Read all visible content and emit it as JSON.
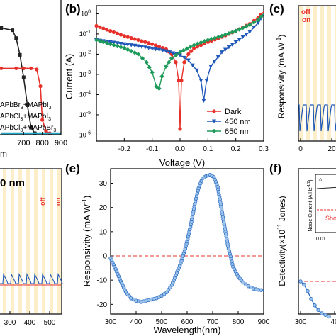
{
  "colors": {
    "red": "#e8302a",
    "blue": "#1f57b8",
    "green": "#1e9a5a",
    "black": "#222222",
    "gray": "#666666",
    "cyan": "#22a7c9",
    "zero_dash": "#e8302a",
    "light_band": "#fbeec9",
    "e_curve": "#2b6cc4",
    "e_marker_fill": "#9cc3ea"
  },
  "chart_data": [
    {
      "id": "a",
      "type": "line",
      "panel_label": "",
      "xlabel_partial": "m",
      "x_ticks": [
        "700",
        "800",
        "900"
      ],
      "legend": [
        "APbBr3+MAPbI3",
        "APbCl3+MAPbI3",
        "APbCl3+MAPbBr3"
      ],
      "series": [
        {
          "color": "black",
          "x": [
            580,
            640,
            660,
            680,
            700,
            720,
            740,
            760
          ],
          "y": [
            0.94,
            0.92,
            0.85,
            0.7,
            0.5,
            0.25,
            0.05,
            0.0
          ]
        },
        {
          "color": "red",
          "x": [
            580,
            660,
            700,
            740,
            770,
            790,
            800,
            820,
            840
          ],
          "y": [
            0.58,
            0.58,
            0.58,
            0.58,
            0.57,
            0.42,
            0.12,
            0.02,
            0.0
          ]
        },
        {
          "color": "cyan",
          "x": [
            580,
            900
          ],
          "y": [
            0.0,
            0.0
          ]
        }
      ]
    },
    {
      "id": "b",
      "type": "line",
      "panel_label": "(b)",
      "xlabel": "Voltage (V)",
      "ylabel": "Current (A)",
      "x_ticks": [
        "-0.2",
        "-0.1",
        "0.0",
        "0.1",
        "0.2",
        "0.3"
      ],
      "y_ticks": [
        "10",
        "10",
        "10",
        "10",
        "10",
        "10",
        "10",
        "10"
      ],
      "y_tick_exponents": [
        "0",
        "-1",
        "-2",
        "-3",
        "-4",
        "-5",
        "-6"
      ],
      "y_ticks_full": [
        "10^0",
        "10^-1",
        "10^-2",
        "10^-3",
        "10^-4",
        "10^-5",
        "10^-6"
      ],
      "xlim": [
        -0.3,
        0.3
      ],
      "ylim_log10": [
        -6.3,
        0.4
      ],
      "legend": [
        "Dark",
        "450 nm",
        "650 nm"
      ],
      "legend_position": "bottom-right",
      "series": [
        {
          "name": "Dark",
          "color": "red",
          "marker": "circle",
          "x": [
            -0.3,
            -0.25,
            -0.2,
            -0.15,
            -0.1,
            -0.05,
            -0.03,
            -0.015,
            -0.005,
            0.0,
            0.005,
            0.015,
            0.03,
            0.05,
            0.1,
            0.15,
            0.2,
            0.25,
            0.28,
            0.3
          ],
          "y": [
            -0.6,
            -0.85,
            -1.1,
            -1.3,
            -1.5,
            -1.75,
            -2.0,
            -2.4,
            -3.3,
            -5.7,
            -3.3,
            -2.4,
            -2.0,
            -1.7,
            -1.4,
            -1.15,
            -0.85,
            -0.5,
            -0.2,
            0.1
          ]
        },
        {
          "name": "450 nm",
          "color": "blue",
          "marker": "triangle-down",
          "x": [
            -0.3,
            -0.25,
            -0.2,
            -0.15,
            -0.1,
            -0.05,
            0.0,
            0.03,
            0.06,
            0.075,
            0.085,
            0.095,
            0.11,
            0.15,
            0.2,
            0.25,
            0.28,
            0.3
          ],
          "y": [
            -1.3,
            -1.4,
            -1.5,
            -1.6,
            -1.72,
            -1.85,
            -2.05,
            -2.3,
            -2.8,
            -3.3,
            -4.3,
            -3.3,
            -2.6,
            -1.9,
            -1.4,
            -0.9,
            -0.45,
            0.0
          ]
        },
        {
          "name": "650 nm",
          "color": "green",
          "marker": "diamond",
          "x": [
            -0.3,
            -0.25,
            -0.2,
            -0.15,
            -0.12,
            -0.1,
            -0.085,
            -0.075,
            -0.065,
            -0.05,
            -0.03,
            0.0,
            0.05,
            0.1,
            0.15,
            0.2,
            0.25,
            0.28,
            0.3
          ],
          "y": [
            -1.3,
            -1.5,
            -1.7,
            -2.0,
            -2.4,
            -2.9,
            -3.6,
            -3.7,
            -3.1,
            -2.6,
            -2.2,
            -1.9,
            -1.55,
            -1.3,
            -1.1,
            -0.85,
            -0.55,
            -0.3,
            0.0
          ]
        }
      ]
    },
    {
      "id": "c",
      "type": "line",
      "panel_label": "(c)",
      "ylabel": "Responsivity (mA W",
      "ylabel_sup": "-1",
      "ylabel_end": ")",
      "x_ticks": [
        "0",
        "20"
      ],
      "annotations": [
        "off",
        "on"
      ],
      "series": [
        {
          "name": "on/off response",
          "color": "blue",
          "x": [
            0,
            1,
            2,
            3,
            4,
            5,
            6,
            7,
            8,
            9,
            10,
            11
          ],
          "y": [
            0,
            -1,
            0,
            -1,
            0,
            -1,
            0,
            -1,
            0,
            -1,
            0,
            -1
          ]
        }
      ]
    },
    {
      "id": "d",
      "type": "line",
      "panel_label": "",
      "x_ticks": [
        "300",
        "400",
        "500"
      ],
      "title_partial": "0 nm",
      "annotations": [
        "off",
        "on"
      ],
      "series": [
        {
          "name": "on/off response",
          "color": "blue",
          "x": [
            0,
            1,
            2,
            3,
            4,
            5,
            6,
            7,
            8,
            9,
            10,
            11
          ],
          "y": [
            0,
            1,
            0,
            1,
            0,
            1,
            0,
            1,
            0,
            1,
            0,
            1
          ]
        }
      ]
    },
    {
      "id": "e",
      "type": "scatter",
      "panel_label": "(e)",
      "xlabel": "Wavelength(nm)",
      "ylabel": "Responsivity (mA W",
      "ylabel_sup": "-1",
      "ylabel_end": ")",
      "x_ticks": [
        "300",
        "400",
        "500",
        "600",
        "700",
        "800",
        "900"
      ],
      "y_ticks": [
        "-20",
        "-10",
        "0",
        "10",
        "20",
        "30"
      ],
      "xlim": [
        300,
        900
      ],
      "ylim": [
        -24,
        36
      ],
      "reference_line": 0,
      "series": [
        {
          "name": "responsivity",
          "color": "e_curve",
          "x": [
            300,
            320,
            340,
            360,
            380,
            400,
            420,
            440,
            460,
            480,
            500,
            520,
            540,
            560,
            575,
            590,
            600,
            615,
            630,
            645,
            660,
            675,
            690,
            705,
            720,
            740,
            760,
            780,
            800,
            820,
            840,
            860,
            880,
            900
          ],
          "y": [
            -1.0,
            -5.5,
            -10.5,
            -15.0,
            -17.5,
            -18.5,
            -19.0,
            -18.5,
            -18.0,
            -17.5,
            -16.5,
            -15.0,
            -12.0,
            -7.0,
            -3.0,
            2.0,
            6.0,
            13.0,
            21.5,
            28.0,
            32.0,
            33.0,
            33.5,
            32.5,
            28.5,
            16.0,
            4.0,
            -4.5,
            -8.5,
            -11.0,
            -12.5,
            -13.5,
            -14.0,
            -14.2
          ]
        }
      ]
    },
    {
      "id": "f",
      "type": "scatter",
      "panel_label": "(f)",
      "ylabel": "Detectivity(×10",
      "ylabel_sup": "11",
      "ylabel_end": " Jones)",
      "x_ticks": [
        "300",
        "40"
      ],
      "inset": {
        "ylabel": "Noise Current (A Hz",
        "ylabel_sup": "-1/2",
        "ylabel_end": ")",
        "x_tick": "0.01",
        "y_tick_base": "10",
        "annotation": "Sho",
        "annotation_partial_b": "Sh"
      },
      "series": [
        {
          "name": "detectivity",
          "color": "e_curve",
          "x": [
            300,
            310,
            320,
            330,
            340,
            350,
            360,
            370,
            380
          ],
          "y": [
            0.0,
            -0.1,
            -0.3,
            -0.55,
            -0.75,
            -0.9,
            -1.0,
            -1.05,
            -1.1
          ]
        }
      ]
    }
  ]
}
